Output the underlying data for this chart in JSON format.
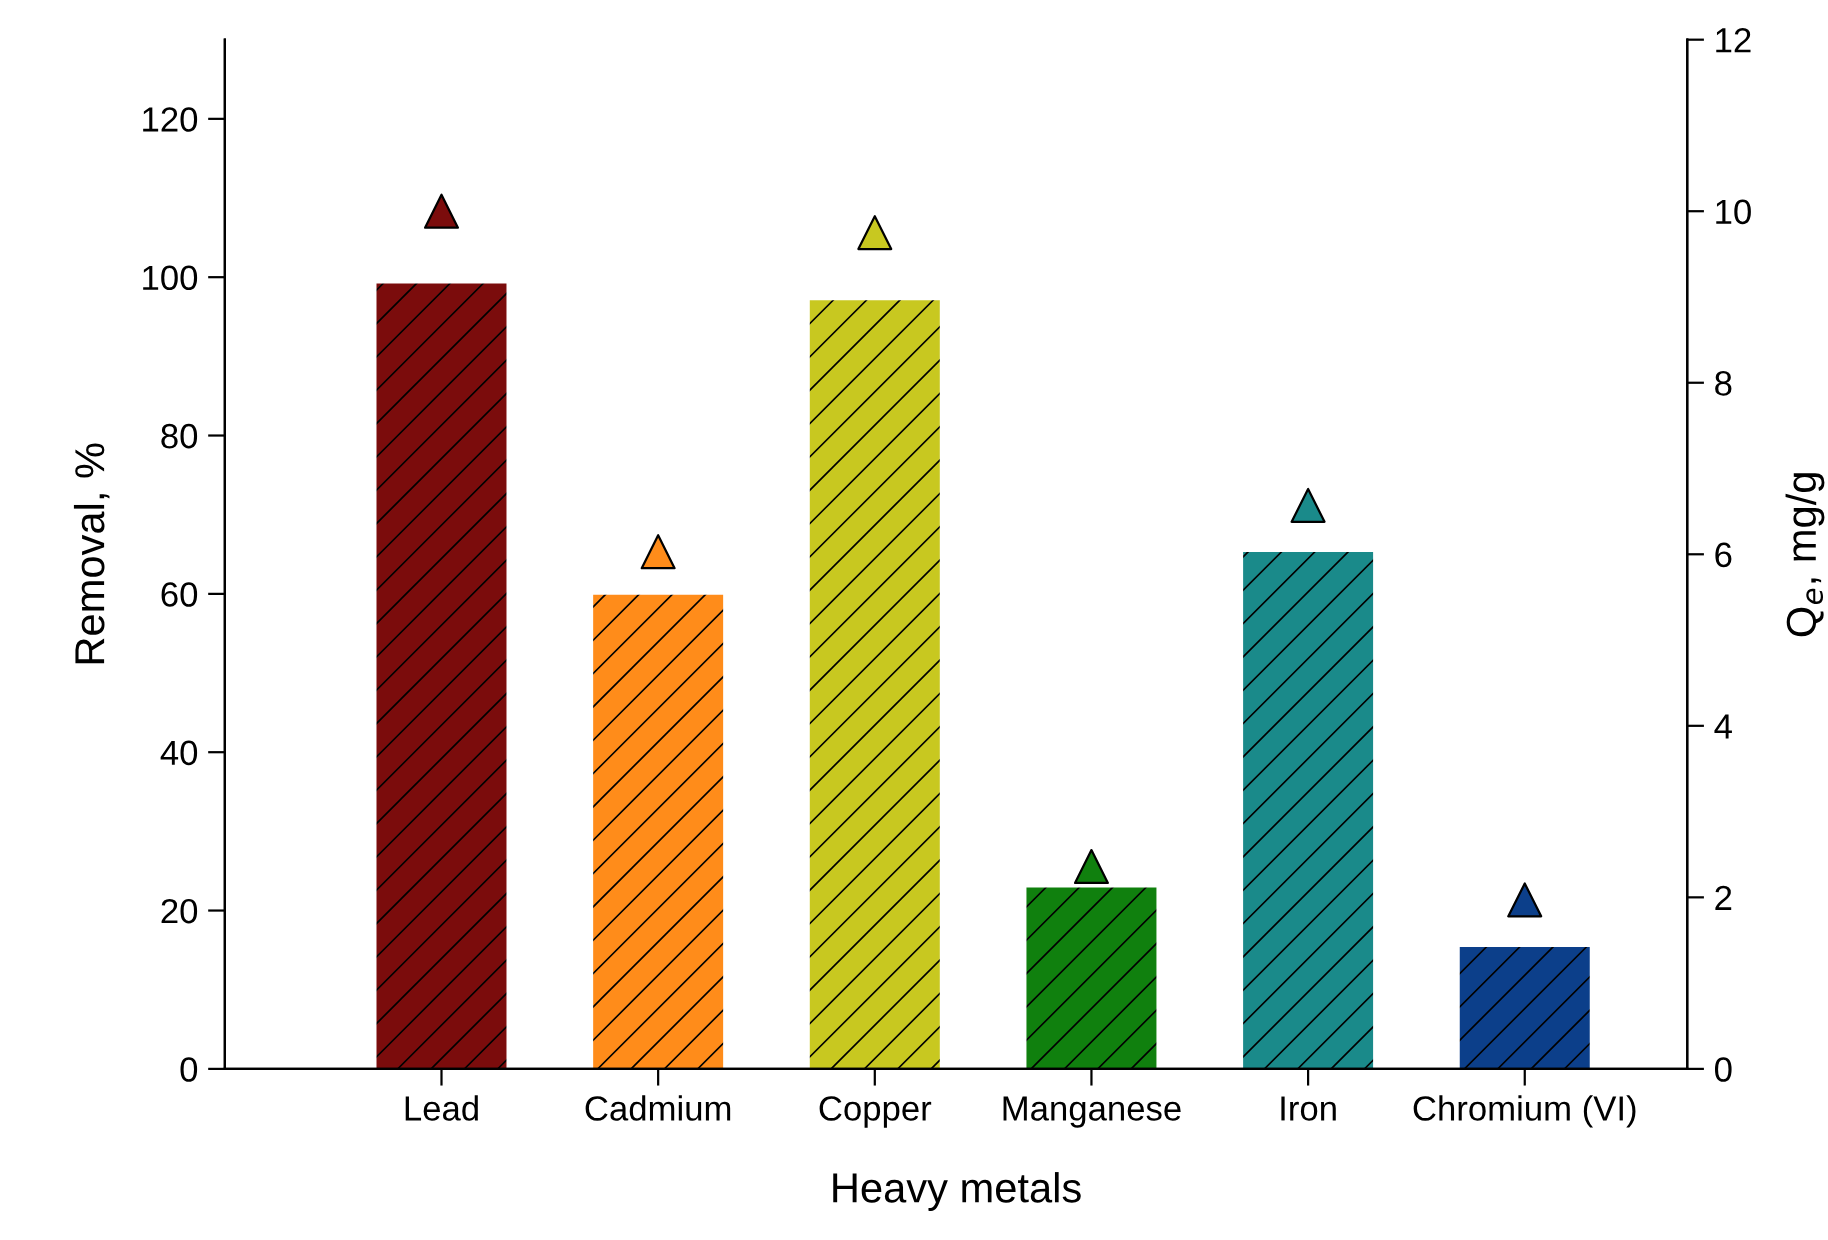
{
  "chart_data": {
    "type": "bar",
    "xlabel": "Heavy metals",
    "ylabel": "Removal, %",
    "y2label": "Q$_{e}$, mg/g",
    "categories": [
      "Lead",
      "Cadmium",
      "Copper",
      "Manganese",
      "Iron",
      "Chromium (VI)"
    ],
    "series": [
      {
        "colors": [
          "#7b0c0c",
          "#ff8c1a",
          "#c8c820",
          "#10800e",
          "#1a8a8a",
          "#0c3f8a"
        ],
        "values": [
          99.2,
          59.9,
          97.1,
          22.9,
          65.3,
          15.4
        ]
      },
      {
        "type": "scatter",
        "axis": "y2",
        "marker": "triangle",
        "colors": [
          "#7b0c0c",
          "#ff8c1a",
          "#c8c820",
          "#10800e",
          "#1a8a8a",
          "#0c3f8a"
        ],
        "values": [
          10.0,
          6.03,
          9.75,
          2.36,
          6.57,
          1.97
        ]
      }
    ],
    "ylim": [
      0,
      130
    ],
    "yticks": [
      0,
      20,
      40,
      60,
      80,
      100,
      120
    ],
    "y2lim": [
      0,
      12
    ],
    "y2ticks": [
      0,
      2,
      4,
      6,
      8,
      10,
      12
    ],
    "grid": false,
    "legend": false
  }
}
